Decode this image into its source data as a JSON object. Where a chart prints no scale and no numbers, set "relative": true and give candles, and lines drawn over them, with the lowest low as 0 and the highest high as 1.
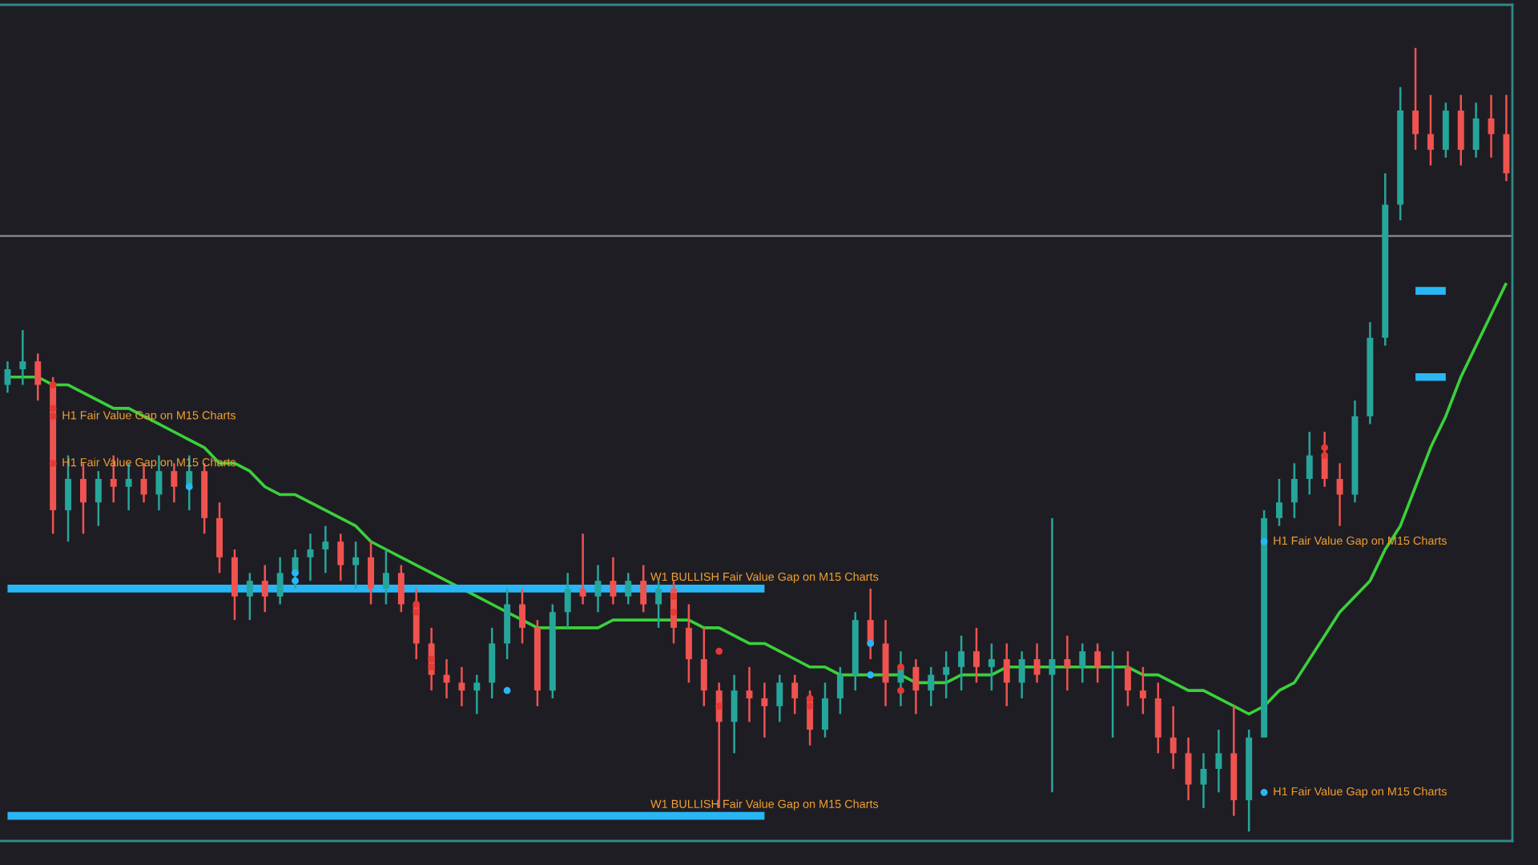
{
  "chart_data": {
    "type": "candlestick",
    "relative": true,
    "categories": [
      null,
      null,
      null,
      null,
      null,
      null,
      null,
      null,
      null,
      null,
      null,
      null,
      null,
      null,
      null,
      null,
      null,
      null,
      null,
      null,
      null,
      null,
      null,
      null,
      null,
      null,
      null,
      null,
      null,
      null,
      null,
      null,
      null,
      null,
      null,
      null,
      null,
      null,
      null,
      null,
      null,
      null,
      null,
      null,
      null,
      null,
      null,
      null,
      null,
      null,
      null,
      null,
      null,
      null,
      null,
      null,
      null,
      null,
      null,
      null,
      null,
      null,
      null,
      null,
      null,
      null,
      null,
      null,
      null,
      null,
      null,
      null,
      null,
      null,
      null,
      null,
      null,
      null,
      null,
      null,
      null,
      null,
      null,
      null,
      null,
      null,
      null,
      null,
      null,
      null,
      null,
      null,
      null,
      null,
      null,
      null,
      null,
      null,
      null,
      null
    ],
    "ohlc": [
      [
        0.57,
        0.6,
        0.56,
        0.59
      ],
      [
        0.59,
        0.64,
        0.57,
        0.6
      ],
      [
        0.6,
        0.61,
        0.55,
        0.57
      ],
      [
        0.57,
        0.58,
        0.38,
        0.41
      ],
      [
        0.41,
        0.48,
        0.37,
        0.45
      ],
      [
        0.45,
        0.47,
        0.38,
        0.42
      ],
      [
        0.42,
        0.46,
        0.39,
        0.45
      ],
      [
        0.45,
        0.48,
        0.42,
        0.44
      ],
      [
        0.44,
        0.47,
        0.41,
        0.45
      ],
      [
        0.45,
        0.47,
        0.42,
        0.43
      ],
      [
        0.43,
        0.48,
        0.41,
        0.46
      ],
      [
        0.46,
        0.47,
        0.42,
        0.44
      ],
      [
        0.44,
        0.48,
        0.41,
        0.46
      ],
      [
        0.46,
        0.47,
        0.38,
        0.4
      ],
      [
        0.4,
        0.42,
        0.33,
        0.35
      ],
      [
        0.35,
        0.36,
        0.27,
        0.3
      ],
      [
        0.3,
        0.33,
        0.27,
        0.32
      ],
      [
        0.32,
        0.34,
        0.28,
        0.3
      ],
      [
        0.3,
        0.35,
        0.29,
        0.33
      ],
      [
        0.33,
        0.36,
        0.31,
        0.35
      ],
      [
        0.35,
        0.38,
        0.32,
        0.36
      ],
      [
        0.36,
        0.39,
        0.33,
        0.37
      ],
      [
        0.37,
        0.38,
        0.32,
        0.34
      ],
      [
        0.34,
        0.37,
        0.31,
        0.35
      ],
      [
        0.35,
        0.37,
        0.29,
        0.31
      ],
      [
        0.31,
        0.36,
        0.29,
        0.33
      ],
      [
        0.33,
        0.34,
        0.28,
        0.29
      ],
      [
        0.29,
        0.31,
        0.22,
        0.24
      ],
      [
        0.24,
        0.26,
        0.18,
        0.2
      ],
      [
        0.2,
        0.22,
        0.17,
        0.19
      ],
      [
        0.19,
        0.21,
        0.16,
        0.18
      ],
      [
        0.18,
        0.2,
        0.15,
        0.19
      ],
      [
        0.19,
        0.26,
        0.17,
        0.24
      ],
      [
        0.24,
        0.31,
        0.22,
        0.29
      ],
      [
        0.29,
        0.31,
        0.24,
        0.26
      ],
      [
        0.26,
        0.27,
        0.16,
        0.18
      ],
      [
        0.18,
        0.29,
        0.17,
        0.28
      ],
      [
        0.28,
        0.33,
        0.26,
        0.31
      ],
      [
        0.31,
        0.38,
        0.29,
        0.3
      ],
      [
        0.3,
        0.34,
        0.28,
        0.32
      ],
      [
        0.32,
        0.35,
        0.29,
        0.3
      ],
      [
        0.3,
        0.33,
        0.29,
        0.32
      ],
      [
        0.32,
        0.34,
        0.28,
        0.29
      ],
      [
        0.29,
        0.32,
        0.26,
        0.31
      ],
      [
        0.31,
        0.32,
        0.24,
        0.26
      ],
      [
        0.26,
        0.29,
        0.19,
        0.22
      ],
      [
        0.22,
        0.26,
        0.16,
        0.18
      ],
      [
        0.18,
        0.19,
        0.03,
        0.14
      ],
      [
        0.14,
        0.2,
        0.1,
        0.18
      ],
      [
        0.18,
        0.21,
        0.14,
        0.17
      ],
      [
        0.17,
        0.19,
        0.12,
        0.16
      ],
      [
        0.16,
        0.2,
        0.14,
        0.19
      ],
      [
        0.19,
        0.2,
        0.15,
        0.17
      ],
      [
        0.17,
        0.18,
        0.11,
        0.13
      ],
      [
        0.13,
        0.19,
        0.12,
        0.17
      ],
      [
        0.17,
        0.21,
        0.15,
        0.2
      ],
      [
        0.2,
        0.28,
        0.18,
        0.27
      ],
      [
        0.27,
        0.31,
        0.22,
        0.24
      ],
      [
        0.24,
        0.27,
        0.16,
        0.19
      ],
      [
        0.19,
        0.23,
        0.16,
        0.21
      ],
      [
        0.21,
        0.22,
        0.15,
        0.18
      ],
      [
        0.18,
        0.21,
        0.16,
        0.2
      ],
      [
        0.2,
        0.23,
        0.17,
        0.21
      ],
      [
        0.21,
        0.25,
        0.18,
        0.23
      ],
      [
        0.23,
        0.26,
        0.19,
        0.21
      ],
      [
        0.21,
        0.24,
        0.18,
        0.22
      ],
      [
        0.22,
        0.24,
        0.16,
        0.19
      ],
      [
        0.19,
        0.23,
        0.17,
        0.22
      ],
      [
        0.22,
        0.24,
        0.19,
        0.2
      ],
      [
        0.2,
        0.4,
        0.05,
        0.22
      ],
      [
        0.22,
        0.25,
        0.18,
        0.21
      ],
      [
        0.21,
        0.24,
        0.19,
        0.23
      ],
      [
        0.23,
        0.24,
        0.19,
        0.21
      ],
      [
        0.21,
        0.23,
        0.12,
        0.21
      ],
      [
        0.21,
        0.23,
        0.16,
        0.18
      ],
      [
        0.18,
        0.21,
        0.15,
        0.17
      ],
      [
        0.17,
        0.19,
        0.1,
        0.12
      ],
      [
        0.12,
        0.16,
        0.08,
        0.1
      ],
      [
        0.1,
        0.12,
        0.04,
        0.06
      ],
      [
        0.06,
        0.1,
        0.03,
        0.08
      ],
      [
        0.08,
        0.13,
        0.05,
        0.1
      ],
      [
        0.1,
        0.16,
        0.02,
        0.04
      ],
      [
        0.04,
        0.13,
        0,
        0.12
      ],
      [
        0.12,
        0.41,
        0.12,
        0.4
      ],
      [
        0.4,
        0.45,
        0.39,
        0.42
      ],
      [
        0.42,
        0.47,
        0.4,
        0.45
      ],
      [
        0.45,
        0.51,
        0.43,
        0.48
      ],
      [
        0.48,
        0.51,
        0.44,
        0.45
      ],
      [
        0.45,
        0.47,
        0.39,
        0.43
      ],
      [
        0.43,
        0.55,
        0.42,
        0.53
      ],
      [
        0.53,
        0.65,
        0.52,
        0.63
      ],
      [
        0.63,
        0.84,
        0.62,
        0.8
      ],
      [
        0.8,
        0.95,
        0.78,
        0.92
      ],
      [
        0.92,
        1,
        0.87,
        0.89
      ],
      [
        0.89,
        0.94,
        0.85,
        0.87
      ],
      [
        0.87,
        0.93,
        0.86,
        0.92
      ],
      [
        0.92,
        0.94,
        0.85,
        0.87
      ],
      [
        0.87,
        0.93,
        0.86,
        0.91
      ],
      [
        0.91,
        0.94,
        0.86,
        0.89
      ],
      [
        0.89,
        0.94,
        0.83,
        0.84
      ]
    ],
    "series": [
      {
        "type": "line",
        "color": "#3ad13a",
        "values": [
          0.58,
          0.58,
          0.58,
          0.57,
          0.57,
          0.56,
          0.55,
          0.54,
          0.54,
          0.53,
          0.52,
          0.51,
          0.5,
          0.49,
          0.47,
          0.47,
          0.46,
          0.44,
          0.43,
          0.43,
          0.42,
          0.41,
          0.4,
          0.39,
          0.37,
          0.36,
          0.35,
          0.34,
          0.33,
          0.32,
          0.31,
          0.3,
          0.29,
          0.28,
          0.27,
          0.26,
          0.26,
          0.26,
          0.26,
          0.26,
          0.27,
          0.27,
          0.27,
          0.27,
          0.27,
          0.27,
          0.26,
          0.26,
          0.25,
          0.24,
          0.24,
          0.23,
          0.22,
          0.21,
          0.21,
          0.2,
          0.2,
          0.2,
          0.2,
          0.2,
          0.19,
          0.19,
          0.19,
          0.2,
          0.2,
          0.2,
          0.21,
          0.21,
          0.21,
          0.21,
          0.21,
          0.21,
          0.21,
          0.21,
          0.21,
          0.2,
          0.2,
          0.19,
          0.18,
          0.18,
          0.17,
          0.16,
          0.15,
          0.16,
          0.18,
          0.19,
          0.22,
          0.25,
          0.28,
          0.3,
          0.32,
          0.36,
          0.39,
          0.44,
          0.49,
          0.53,
          0.58,
          0.62,
          0.66,
          0.7
        ]
      },
      {
        "type": "line",
        "name": "W1 BULLISH Fair Value Gap on M15 Charts",
        "color": "#29b6f6",
        "values": [
          0.31,
          0.31,
          0.31,
          0.31,
          0.31,
          0.31,
          0.31,
          0.31,
          0.31,
          0.31,
          0.31,
          0.31,
          0.31,
          0.31,
          0.31,
          0.31,
          0.31,
          0.31,
          0.31,
          0.31,
          0.31,
          0.31,
          0.31,
          0.31,
          0.31,
          0.31,
          0.31,
          0.31,
          0.31,
          0.31,
          0.31,
          0.31,
          0.31,
          0.31,
          0.31,
          0.31,
          0.31,
          0.31,
          0.31,
          0.31,
          0.31,
          0.31,
          0.31,
          0.31,
          0.31,
          0.31,
          0.31,
          0.31,
          0.31,
          0.31,
          0.31,
          null,
          null,
          null,
          null,
          null,
          null,
          null,
          null,
          null,
          null,
          null,
          null,
          null,
          null,
          null,
          null,
          null,
          null,
          null,
          null,
          null,
          null,
          null,
          null,
          null,
          null,
          null,
          null,
          null,
          null,
          null,
          null,
          null,
          null,
          null,
          null,
          null,
          null,
          null,
          null,
          null,
          null,
          null,
          null,
          null,
          null,
          null,
          null,
          null
        ]
      },
      {
        "type": "line",
        "name": "W1 BULLISH Fair Value Gap on M15 Charts",
        "color": "#29b6f6",
        "values": [
          0.02,
          0.02,
          0.02,
          0.02,
          0.02,
          0.02,
          0.02,
          0.02,
          0.02,
          0.02,
          0.02,
          0.02,
          0.02,
          0.02,
          0.02,
          0.02,
          0.02,
          0.02,
          0.02,
          0.02,
          0.02,
          0.02,
          0.02,
          0.02,
          0.02,
          0.02,
          0.02,
          0.02,
          0.02,
          0.02,
          0.02,
          0.02,
          0.02,
          0.02,
          0.02,
          0.02,
          0.02,
          0.02,
          0.02,
          0.02,
          0.02,
          0.02,
          0.02,
          0.02,
          0.02,
          0.02,
          0.02,
          0.02,
          0.02,
          0.02,
          0.02,
          null,
          null,
          null,
          null,
          null,
          null,
          null,
          null,
          null,
          null,
          null,
          null,
          null,
          null,
          null,
          null,
          null,
          null,
          null,
          null,
          null,
          null,
          null,
          null,
          null,
          null,
          null,
          null,
          null,
          null,
          null,
          null,
          null,
          null,
          null,
          null,
          null,
          null,
          null,
          null,
          null,
          null,
          null,
          null,
          null,
          null,
          null,
          null,
          null
        ]
      },
      {
        "type": "line",
        "color": "#29b6f6",
        "values": [
          null,
          null,
          null,
          null,
          null,
          null,
          null,
          null,
          null,
          null,
          null,
          null,
          null,
          null,
          null,
          null,
          null,
          null,
          null,
          null,
          null,
          null,
          null,
          null,
          null,
          null,
          null,
          null,
          null,
          null,
          null,
          null,
          null,
          null,
          null,
          null,
          null,
          null,
          null,
          null,
          null,
          null,
          null,
          null,
          null,
          null,
          null,
          null,
          null,
          null,
          null,
          null,
          null,
          null,
          null,
          null,
          null,
          null,
          null,
          null,
          null,
          null,
          null,
          null,
          null,
          null,
          null,
          null,
          null,
          null,
          null,
          null,
          null,
          null,
          null,
          null,
          null,
          null,
          null,
          null,
          null,
          null,
          null,
          null,
          null,
          null,
          null,
          null,
          null,
          null,
          null,
          null,
          null,
          0.69,
          0.69,
          0.69,
          null,
          null,
          null,
          null
        ]
      },
      {
        "type": "line",
        "color": "#2ab8f4",
        "values": [
          null,
          null,
          null,
          null,
          null,
          null,
          null,
          null,
          null,
          null,
          null,
          null,
          null,
          null,
          null,
          null,
          null,
          null,
          null,
          null,
          null,
          null,
          null,
          null,
          null,
          null,
          null,
          null,
          null,
          null,
          null,
          null,
          null,
          null,
          null,
          null,
          null,
          null,
          null,
          null,
          null,
          null,
          null,
          null,
          null,
          null,
          null,
          null,
          null,
          null,
          null,
          null,
          null,
          null,
          null,
          null,
          null,
          null,
          null,
          null,
          null,
          null,
          null,
          null,
          null,
          null,
          null,
          null,
          null,
          null,
          null,
          null,
          null,
          null,
          null,
          null,
          null,
          null,
          null,
          null,
          null,
          null,
          null,
          null,
          null,
          null,
          null,
          null,
          null,
          null,
          null,
          null,
          null,
          0.58,
          0.58,
          0.58,
          null,
          null,
          null,
          null
        ]
      },
      {
        "type": "scatter",
        "marker": "circle",
        "color": "#e53935",
        "values": [
          null,
          null,
          null,
          0.54,
          null,
          null,
          null,
          null,
          null,
          null,
          null,
          null,
          null,
          null,
          null,
          null,
          null,
          null,
          null,
          null,
          null,
          null,
          null,
          null,
          null,
          null,
          null,
          0.29,
          0.22,
          null,
          null,
          null,
          null,
          null,
          null,
          null,
          null,
          null,
          null,
          null,
          null,
          null,
          null,
          null,
          0.3,
          null,
          null,
          0.16,
          null,
          null,
          null,
          null,
          null,
          0.17,
          null,
          null,
          null,
          null,
          null,
          0.21,
          null,
          null,
          null,
          null,
          null,
          null,
          null,
          null,
          null,
          null,
          null,
          null,
          null,
          null,
          null,
          null,
          null,
          null,
          null,
          null,
          null,
          null,
          null,
          null,
          null,
          null,
          null,
          0.49,
          null,
          null,
          null,
          null,
          null,
          null,
          null,
          null,
          null,
          null,
          null,
          null
        ]
      },
      {
        "type": "scatter",
        "marker": "circle",
        "color": "#e53935",
        "values": [
          null,
          null,
          null,
          0.57,
          null,
          null,
          null,
          null,
          null,
          null,
          null,
          null,
          null,
          null,
          null,
          null,
          null,
          null,
          null,
          null,
          null,
          null,
          null,
          null,
          null,
          null,
          null,
          0.28,
          0.21,
          null,
          null,
          null,
          null,
          null,
          null,
          null,
          null,
          null,
          null,
          null,
          null,
          null,
          null,
          null,
          0.28,
          null,
          null,
          0.23,
          null,
          null,
          null,
          null,
          null,
          0.16,
          null,
          null,
          null,
          null,
          null,
          0.18,
          null,
          null,
          null,
          null,
          null,
          null,
          null,
          null,
          null,
          null,
          null,
          null,
          null,
          null,
          null,
          null,
          null,
          null,
          null,
          null,
          null,
          null,
          null,
          null,
          null,
          null,
          null,
          0.48,
          null,
          null,
          null,
          null,
          null,
          null,
          null,
          null,
          null,
          null,
          null,
          null
        ]
      },
      {
        "type": "scatter",
        "marker": "circle",
        "color": "#29b6f6",
        "values": [
          null,
          null,
          null,
          null,
          null,
          null,
          null,
          null,
          null,
          null,
          null,
          null,
          0.44,
          null,
          null,
          null,
          null,
          null,
          null,
          0.33,
          null,
          null,
          null,
          null,
          null,
          null,
          null,
          null,
          null,
          null,
          null,
          null,
          null,
          0.18,
          null,
          null,
          null,
          null,
          null,
          null,
          null,
          null,
          null,
          null,
          null,
          null,
          null,
          null,
          null,
          null,
          null,
          null,
          null,
          null,
          null,
          null,
          null,
          0.24,
          null,
          null,
          null,
          null,
          null,
          null,
          null,
          null,
          null,
          null,
          null,
          null,
          null,
          null,
          null,
          null,
          null,
          null,
          null,
          null,
          null,
          null,
          null,
          null,
          null,
          null,
          null,
          null,
          null,
          null,
          null,
          null,
          null,
          null,
          null,
          null,
          null,
          null,
          null,
          null,
          null,
          null
        ]
      },
      {
        "type": "scatter",
        "marker": "circle",
        "color": "#29b6f6",
        "values": [
          null,
          null,
          null,
          null,
          null,
          null,
          null,
          null,
          null,
          null,
          null,
          null,
          null,
          null,
          null,
          null,
          null,
          null,
          null,
          0.32,
          null,
          null,
          null,
          null,
          null,
          null,
          null,
          null,
          null,
          null,
          null,
          null,
          null,
          null,
          null,
          null,
          null,
          null,
          null,
          null,
          null,
          null,
          null,
          null,
          null,
          null,
          null,
          null,
          null,
          null,
          null,
          null,
          null,
          null,
          null,
          null,
          null,
          0.2,
          null,
          null,
          null,
          null,
          null,
          null,
          null,
          null,
          null,
          null,
          null,
          null,
          null,
          null,
          null,
          null,
          null,
          null,
          null,
          null,
          null,
          null,
          null,
          null,
          null,
          null,
          null,
          null,
          null,
          null,
          null,
          null,
          null,
          null,
          null,
          null,
          null,
          null,
          null,
          null,
          null,
          null
        ]
      },
      {
        "type": "scatter",
        "marker": "circle",
        "name": "H1 Fair Value Gap on M15 Charts",
        "color": "#e53935",
        "values": [
          null,
          null,
          null,
          0.53,
          null,
          null,
          null,
          null,
          null,
          null,
          null,
          null,
          null,
          null,
          null,
          null,
          null,
          null,
          null,
          null,
          null,
          null,
          null,
          null,
          null,
          null,
          null,
          null,
          null,
          null,
          null,
          null,
          null,
          null,
          null,
          null,
          null,
          null,
          null,
          null,
          null,
          null,
          null,
          null,
          null,
          null,
          null,
          null,
          null,
          null,
          null,
          null,
          null,
          null,
          null,
          null,
          null,
          null,
          null,
          null,
          null,
          null,
          null,
          null,
          null,
          null,
          null,
          null,
          null,
          null,
          null,
          null,
          null,
          null,
          null,
          null,
          null,
          null,
          null,
          null,
          null,
          null,
          null,
          null,
          null,
          null,
          null,
          null,
          null,
          null,
          null,
          null,
          null,
          null,
          null,
          null,
          null,
          null,
          null,
          null
        ]
      },
      {
        "type": "scatter",
        "marker": "circle",
        "name": "H1 Fair Value Gap on M15 Charts",
        "color": "#e53935",
        "values": [
          null,
          null,
          null,
          0.47,
          null,
          null,
          null,
          null,
          null,
          null,
          null,
          null,
          null,
          null,
          null,
          null,
          null,
          null,
          null,
          null,
          null,
          null,
          null,
          null,
          null,
          null,
          null,
          null,
          null,
          null,
          null,
          null,
          null,
          null,
          null,
          null,
          null,
          null,
          null,
          null,
          null,
          null,
          null,
          null,
          null,
          null,
          null,
          null,
          null,
          null,
          null,
          null,
          null,
          null,
          null,
          null,
          null,
          null,
          null,
          null,
          null,
          null,
          null,
          null,
          null,
          null,
          null,
          null,
          null,
          null,
          null,
          null,
          null,
          null,
          null,
          null,
          null,
          null,
          null,
          null,
          null,
          null,
          null,
          null,
          null,
          null,
          null,
          null,
          null,
          null,
          null,
          null,
          null,
          null,
          null,
          null,
          null,
          null,
          null,
          null
        ]
      },
      {
        "type": "scatter",
        "marker": "circle",
        "name": "H1 Fair Value Gap on M15 Charts",
        "color": "#29b6f6",
        "values": [
          null,
          null,
          null,
          null,
          null,
          null,
          null,
          null,
          null,
          null,
          null,
          null,
          null,
          null,
          null,
          null,
          null,
          null,
          null,
          null,
          null,
          null,
          null,
          null,
          null,
          null,
          null,
          null,
          null,
          null,
          null,
          null,
          null,
          null,
          null,
          null,
          null,
          null,
          null,
          null,
          null,
          null,
          null,
          null,
          null,
          null,
          null,
          null,
          null,
          null,
          null,
          null,
          null,
          null,
          null,
          null,
          null,
          null,
          null,
          null,
          null,
          null,
          null,
          null,
          null,
          null,
          null,
          null,
          null,
          null,
          null,
          null,
          null,
          null,
          null,
          null,
          null,
          null,
          null,
          null,
          null,
          null,
          null,
          0.37,
          null,
          null,
          null,
          null,
          null,
          null,
          null,
          null,
          null,
          null,
          null,
          null,
          null,
          null,
          null,
          null
        ]
      },
      {
        "type": "scatter",
        "marker": "circle",
        "name": "H1 Fair Value Gap on M15 Charts",
        "color": "#29b6f6",
        "values": [
          null,
          null,
          null,
          null,
          null,
          null,
          null,
          null,
          null,
          null,
          null,
          null,
          null,
          null,
          null,
          null,
          null,
          null,
          null,
          null,
          null,
          null,
          null,
          null,
          null,
          null,
          null,
          null,
          null,
          null,
          null,
          null,
          null,
          null,
          null,
          null,
          null,
          null,
          null,
          null,
          null,
          null,
          null,
          null,
          null,
          null,
          null,
          null,
          null,
          null,
          null,
          null,
          null,
          null,
          null,
          null,
          null,
          null,
          null,
          null,
          null,
          null,
          null,
          null,
          null,
          null,
          null,
          null,
          null,
          null,
          null,
          null,
          null,
          null,
          null,
          null,
          null,
          null,
          null,
          null,
          null,
          null,
          null,
          0.05,
          null,
          null,
          null,
          null,
          null,
          null,
          null,
          null,
          null,
          null,
          null,
          null,
          null,
          null,
          null,
          null
        ]
      }
    ],
    "ref_lines": [
      {
        "axis": "y",
        "value": 0.76,
        "color": "#8c8c8c"
      }
    ]
  }
}
